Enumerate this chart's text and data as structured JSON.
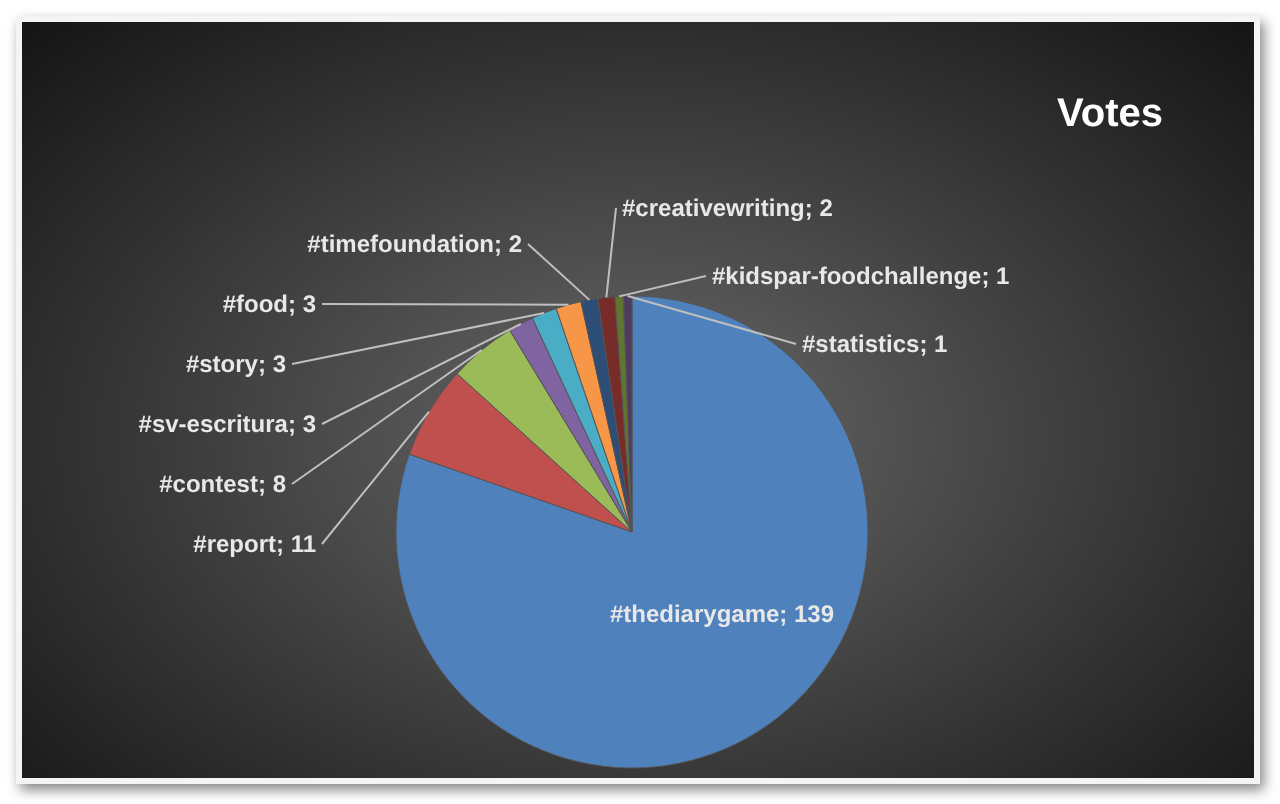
{
  "chart_data": {
    "type": "pie",
    "title": "Votes",
    "categories": [
      "#thediarygame",
      "#report",
      "#contest",
      "#sv-escritura",
      "#story",
      "#food",
      "#timefoundation",
      "#creativewriting",
      "#kidspar-foodchallenge",
      "#statistics"
    ],
    "values": [
      139,
      11,
      8,
      3,
      3,
      3,
      2,
      2,
      1,
      1
    ],
    "colors": [
      "#4f81bd",
      "#c0504d",
      "#9bbb59",
      "#8064a2",
      "#4bacc6",
      "#f79646",
      "#2c4d75",
      "#772c2a",
      "#5f7530",
      "#4d3b62"
    ],
    "value_labels": [
      "; 139",
      "; 11",
      "; 8",
      "; 3",
      "; 3",
      "; 3",
      "; 2",
      "; 2",
      "; 1",
      "; 1"
    ],
    "legend": false
  }
}
